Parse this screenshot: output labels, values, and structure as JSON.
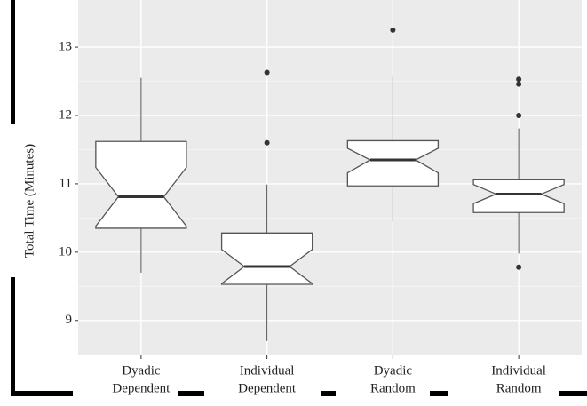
{
  "chart_data": {
    "type": "box",
    "y_label": "Total Time (Minutes)",
    "categories": [
      [
        "Dyadic",
        "Dependent"
      ],
      [
        "Individual",
        "Dependent"
      ],
      [
        "Dyadic",
        "Random"
      ],
      [
        "Individual",
        "Random"
      ]
    ],
    "boxes": [
      {
        "min": 9.7,
        "q1": 10.35,
        "median": 10.81,
        "q3": 11.62,
        "max": 12.55,
        "notch_low": 10.38,
        "notch_high": 11.24,
        "outliers": []
      },
      {
        "min": 8.7,
        "q1": 9.53,
        "median": 9.79,
        "q3": 10.28,
        "max": 10.99,
        "notch_low": 9.54,
        "notch_high": 10.04,
        "outliers": [
          12.63,
          11.6
        ]
      },
      {
        "min": 10.45,
        "q1": 10.97,
        "median": 11.35,
        "q3": 11.63,
        "max": 12.59,
        "notch_low": 11.16,
        "notch_high": 11.52,
        "outliers": [
          13.25
        ]
      },
      {
        "min": 9.98,
        "q1": 10.58,
        "median": 10.85,
        "q3": 11.06,
        "max": 11.81,
        "notch_low": 10.71,
        "notch_high": 10.99,
        "outliers": [
          12.53,
          12.46,
          12.0,
          9.78
        ]
      }
    ],
    "ylim": [
      8.49,
      13.69
    ],
    "yticks": [
      9,
      10,
      11,
      12,
      13
    ],
    "grid": true,
    "color": "#ffffff"
  }
}
